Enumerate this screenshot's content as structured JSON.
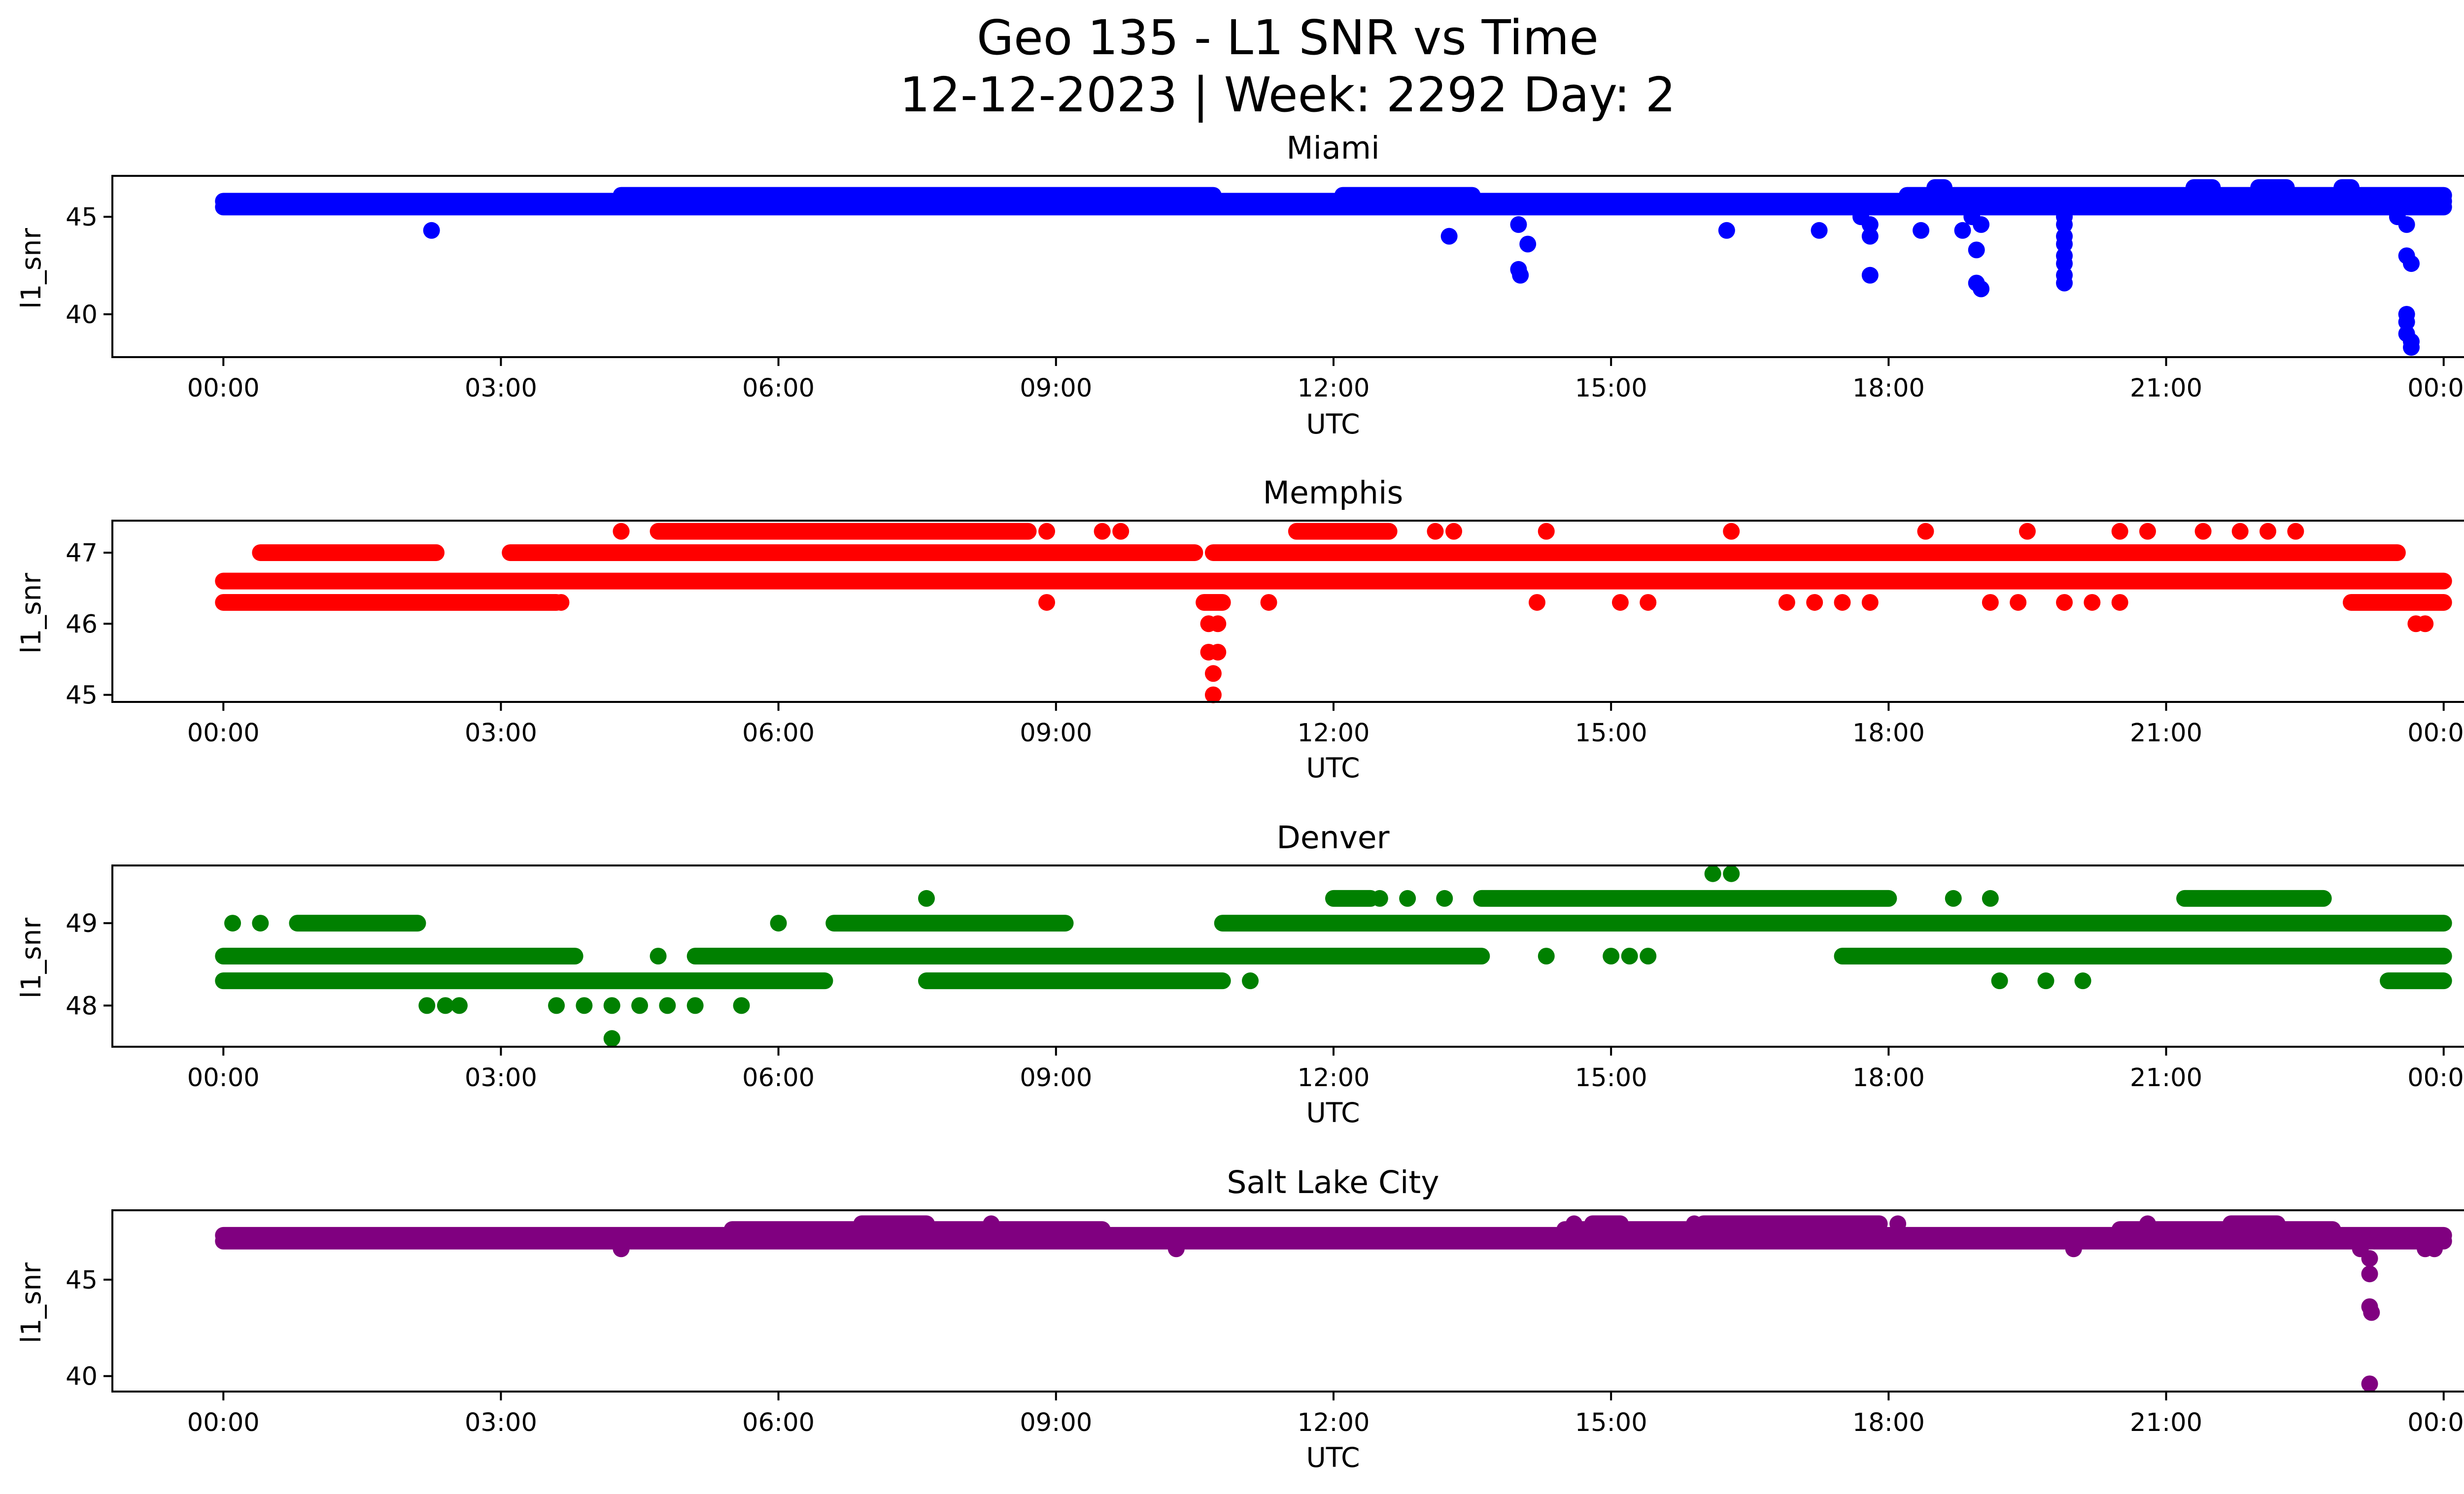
{
  "chart_data": {
    "type": "scatter",
    "title_line1": "Geo 135 - L1 SNR vs Time",
    "title_line2": "12-12-2023 | Week: 2292 Day: 2",
    "xlabel": "UTC",
    "ylabel": "l1_snr",
    "x_tick_labels": [
      "00:00",
      "03:00",
      "06:00",
      "09:00",
      "12:00",
      "15:00",
      "18:00",
      "21:00",
      "00:00"
    ],
    "x_range_hours": [
      -1.2,
      25.2
    ],
    "grid": false,
    "panels": [
      {
        "title": "Miami",
        "color": "#0000ff",
        "ylim": [
          37.8,
          47.1
        ],
        "yticks": [
          40,
          45
        ],
        "bands": [
          {
            "y": 45.5,
            "x": [
              [
                0,
                24
              ]
            ]
          },
          {
            "y": 45.8,
            "x": [
              [
                0,
                24
              ]
            ]
          },
          {
            "y": 46.1,
            "x": [
              [
                4.3,
                10.7
              ],
              [
                12.1,
                13.5
              ],
              [
                18.2,
                24
              ]
            ]
          },
          {
            "y": 46.5,
            "x": [
              [
                18.5,
                18.6
              ],
              [
                21.3,
                21.5
              ],
              [
                22.0,
                22.3
              ],
              [
                22.9,
                23.0
              ]
            ]
          }
        ],
        "points": [
          [
            2.25,
            44.3
          ],
          [
            13.25,
            44.0
          ],
          [
            14.0,
            44.6
          ],
          [
            14.1,
            43.6
          ],
          [
            14.0,
            42.3
          ],
          [
            14.02,
            42.0
          ],
          [
            16.25,
            44.3
          ],
          [
            17.25,
            44.3
          ],
          [
            17.7,
            45.0
          ],
          [
            17.8,
            44.6
          ],
          [
            17.8,
            44.0
          ],
          [
            17.8,
            42.0
          ],
          [
            18.35,
            44.3
          ],
          [
            18.8,
            44.3
          ],
          [
            18.9,
            45.0
          ],
          [
            19.0,
            44.6
          ],
          [
            18.95,
            43.3
          ],
          [
            18.95,
            41.6
          ],
          [
            19.0,
            41.3
          ],
          [
            19.9,
            45.0
          ],
          [
            19.9,
            44.6
          ],
          [
            19.9,
            44.0
          ],
          [
            19.9,
            43.6
          ],
          [
            19.9,
            43.0
          ],
          [
            19.9,
            42.6
          ],
          [
            19.9,
            42.0
          ],
          [
            19.9,
            41.6
          ],
          [
            23.5,
            45.0
          ],
          [
            23.6,
            44.6
          ],
          [
            23.6,
            43.0
          ],
          [
            23.65,
            42.6
          ],
          [
            23.6,
            40.0
          ],
          [
            23.6,
            39.6
          ],
          [
            23.6,
            39.0
          ],
          [
            23.65,
            38.6
          ],
          [
            23.65,
            38.3
          ]
        ]
      },
      {
        "title": "Memphis",
        "color": "#ff0000",
        "ylim": [
          44.9,
          47.45
        ],
        "yticks": [
          45,
          46,
          47
        ],
        "bands": [
          {
            "y": 46.3,
            "x": [
              [
                0,
                3.6
              ],
              [
                10.6,
                10.8
              ],
              [
                23.0,
                24
              ]
            ]
          },
          {
            "y": 46.6,
            "x": [
              [
                0,
                24
              ]
            ]
          },
          {
            "y": 47.0,
            "x": [
              [
                0.4,
                2.3
              ],
              [
                3.1,
                10.5
              ],
              [
                10.7,
                23.5
              ]
            ]
          },
          {
            "y": 47.3,
            "x": [
              [
                4.7,
                8.7
              ],
              [
                11.6,
                12.6
              ]
            ]
          }
        ],
        "points": [
          [
            3.65,
            46.3
          ],
          [
            8.9,
            46.3
          ],
          [
            11.3,
            46.3
          ],
          [
            14.2,
            46.3
          ],
          [
            15.1,
            46.3
          ],
          [
            15.4,
            46.3
          ],
          [
            16.9,
            46.3
          ],
          [
            17.2,
            46.3
          ],
          [
            17.5,
            46.3
          ],
          [
            17.8,
            46.3
          ],
          [
            19.1,
            46.3
          ],
          [
            19.4,
            46.3
          ],
          [
            19.9,
            46.3
          ],
          [
            20.2,
            46.3
          ],
          [
            20.5,
            46.3
          ],
          [
            10.65,
            46.0
          ],
          [
            10.75,
            46.0
          ],
          [
            10.65,
            45.6
          ],
          [
            10.75,
            45.6
          ],
          [
            10.7,
            45.3
          ],
          [
            10.7,
            45.0
          ],
          [
            23.7,
            46.0
          ],
          [
            23.8,
            46.0
          ],
          [
            4.3,
            47.3
          ],
          [
            8.9,
            47.3
          ],
          [
            9.5,
            47.3
          ],
          [
            9.7,
            47.3
          ],
          [
            13.1,
            47.3
          ],
          [
            13.3,
            47.3
          ],
          [
            14.3,
            47.3
          ],
          [
            16.3,
            47.3
          ],
          [
            18.4,
            47.3
          ],
          [
            19.5,
            47.3
          ],
          [
            20.5,
            47.3
          ],
          [
            20.8,
            47.3
          ],
          [
            21.4,
            47.3
          ],
          [
            21.8,
            47.3
          ],
          [
            22.1,
            47.3
          ],
          [
            22.4,
            47.3
          ]
        ]
      },
      {
        "title": "Denver",
        "color": "#008000",
        "ylim": [
          47.5,
          49.7
        ],
        "yticks": [
          48,
          49
        ],
        "bands": [
          {
            "y": 48.3,
            "x": [
              [
                0,
                6.5
              ],
              [
                7.6,
                10.8
              ],
              [
                23.4,
                24
              ]
            ]
          },
          {
            "y": 48.6,
            "x": [
              [
                0,
                3.8
              ],
              [
                5.1,
                13.6
              ],
              [
                17.5,
                24
              ]
            ]
          },
          {
            "y": 49.0,
            "x": [
              [
                0.8,
                2.1
              ],
              [
                6.6,
                9.1
              ],
              [
                10.8,
                24
              ]
            ]
          },
          {
            "y": 49.3,
            "x": [
              [
                12.0,
                12.4
              ],
              [
                13.6,
                18.0
              ],
              [
                21.2,
                22.7
              ]
            ]
          }
        ],
        "points": [
          [
            0.1,
            49.0
          ],
          [
            0.4,
            49.0
          ],
          [
            2.2,
            48.0
          ],
          [
            2.4,
            48.0
          ],
          [
            2.55,
            48.0
          ],
          [
            3.6,
            48.0
          ],
          [
            3.9,
            48.0
          ],
          [
            4.2,
            48.0
          ],
          [
            4.5,
            48.0
          ],
          [
            4.8,
            48.0
          ],
          [
            5.1,
            48.0
          ],
          [
            5.6,
            48.0
          ],
          [
            4.2,
            47.6
          ],
          [
            4.7,
            48.6
          ],
          [
            6.0,
            49.0
          ],
          [
            7.6,
            49.3
          ],
          [
            11.1,
            48.3
          ],
          [
            14.3,
            48.6
          ],
          [
            15.0,
            48.6
          ],
          [
            15.2,
            48.6
          ],
          [
            15.4,
            48.6
          ],
          [
            16.1,
            49.6
          ],
          [
            16.3,
            49.6
          ],
          [
            18.7,
            49.3
          ],
          [
            19.1,
            49.3
          ],
          [
            19.2,
            48.3
          ],
          [
            19.7,
            48.3
          ],
          [
            20.1,
            48.3
          ],
          [
            12.5,
            49.3
          ],
          [
            12.8,
            49.3
          ],
          [
            13.2,
            49.3
          ]
        ]
      },
      {
        "title": "Salt Lake City",
        "color": "#800080",
        "ylim": [
          39.2,
          48.6
        ],
        "yticks": [
          40,
          45
        ],
        "bands": [
          {
            "y": 47.0,
            "x": [
              [
                0,
                24
              ]
            ]
          },
          {
            "y": 47.3,
            "x": [
              [
                0,
                24
              ]
            ]
          },
          {
            "y": 47.6,
            "x": [
              [
                5.5,
                9.5
              ],
              [
                14.5,
                17.5
              ],
              [
                20.5,
                22.8
              ]
            ]
          },
          {
            "y": 47.9,
            "x": [
              [
                6.9,
                7.6
              ],
              [
                14.8,
                15.1
              ],
              [
                16.0,
                17.9
              ],
              [
                21.7,
                22.2
              ]
            ]
          }
        ],
        "points": [
          [
            4.3,
            46.6
          ],
          [
            10.3,
            46.6
          ],
          [
            20.0,
            46.6
          ],
          [
            23.1,
            46.6
          ],
          [
            23.2,
            46.1
          ],
          [
            23.2,
            45.3
          ],
          [
            23.2,
            43.6
          ],
          [
            23.22,
            43.3
          ],
          [
            23.2,
            39.6
          ],
          [
            23.8,
            46.6
          ],
          [
            23.9,
            46.6
          ],
          [
            8.3,
            47.9
          ],
          [
            14.6,
            47.9
          ],
          [
            15.9,
            47.9
          ],
          [
            18.1,
            47.9
          ],
          [
            20.8,
            47.9
          ]
        ]
      }
    ]
  }
}
